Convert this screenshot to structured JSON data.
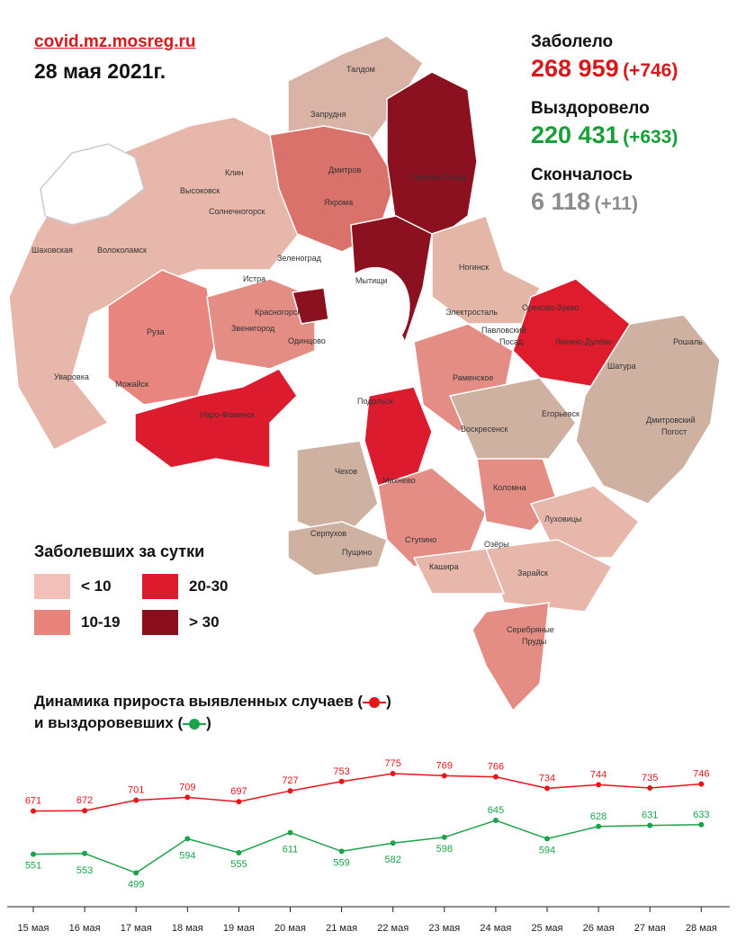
{
  "header": {
    "site": "covid.mz.mosreg.ru",
    "date": "28 мая 2021г."
  },
  "stats": {
    "cases": {
      "label": "Заболело",
      "value": "268 959",
      "delta": "(+746)",
      "color": "#d7191c"
    },
    "recovered": {
      "label": "Выздоровело",
      "value": "220 431",
      "delta": "(+633)",
      "color": "#1a9e3a"
    },
    "deaths": {
      "label": "Скончалось",
      "value": "6 118",
      "delta": "(+11)",
      "color": "#8c8c8c"
    }
  },
  "legend": {
    "title": "Заболевших за сутки",
    "items": [
      {
        "label": "< 10",
        "color": "#f2c0b8"
      },
      {
        "label": "20-30",
        "color": "#dc1c2e"
      },
      {
        "label": "10-19",
        "color": "#e8837c"
      },
      {
        "label": "> 30",
        "color": "#8b0e1c"
      }
    ]
  },
  "map": {
    "cities": [
      "Талдом",
      "Запрудня",
      "Дмитров",
      "Яхрома",
      "Сергиев Посад",
      "Клин",
      "Высоковск",
      "Солнечногорск",
      "Шаховская",
      "Волоколамск",
      "Истра",
      "Зеленоград",
      "Мытищи",
      "Ногинск",
      "Электросталь",
      "Орехово-Зуево",
      "Павловский Посад",
      "Ликино-Дулёво",
      "Рошаль",
      "Шатура",
      "Руза",
      "Звенигород",
      "Красногорск",
      "Одинцово",
      "Уваровка",
      "Можайск",
      "Наро-Фоминск",
      "Раменское",
      "Егорьевск",
      "Подольск",
      "Воскресенск",
      "Дмитровский Погост",
      "Чехов",
      "Михнево",
      "Коломна",
      "Луховицы",
      "Серпухов",
      "Пущино",
      "Ступино",
      "Озёры",
      "Кашира",
      "Зарайск",
      "Серебряные Пруды"
    ]
  },
  "chart_title": {
    "line1_text": "Динамика прироста выявленных случаев (",
    "line1_end": ")",
    "line2_text": "и выздоровевших (",
    "line2_end": ")"
  },
  "chart_data": {
    "type": "line",
    "categories": [
      "15 мая",
      "16 мая",
      "17 мая",
      "18 мая",
      "19 мая",
      "20 мая",
      "21 мая",
      "22 мая",
      "23 мая",
      "24 мая",
      "25 мая",
      "26 мая",
      "27 мая",
      "28 мая"
    ],
    "series": [
      {
        "values": [
          671,
          672,
          701,
          709,
          697,
          727,
          753,
          775,
          769,
          766,
          734,
          744,
          735,
          746
        ],
        "color": "#e8151b"
      },
      {
        "values": [
          551,
          553,
          499,
          594,
          555,
          611,
          559,
          582,
          598,
          645,
          594,
          628,
          631,
          633
        ],
        "color": "#1aa34a"
      }
    ],
    "ylim": [
      450,
      800
    ]
  }
}
